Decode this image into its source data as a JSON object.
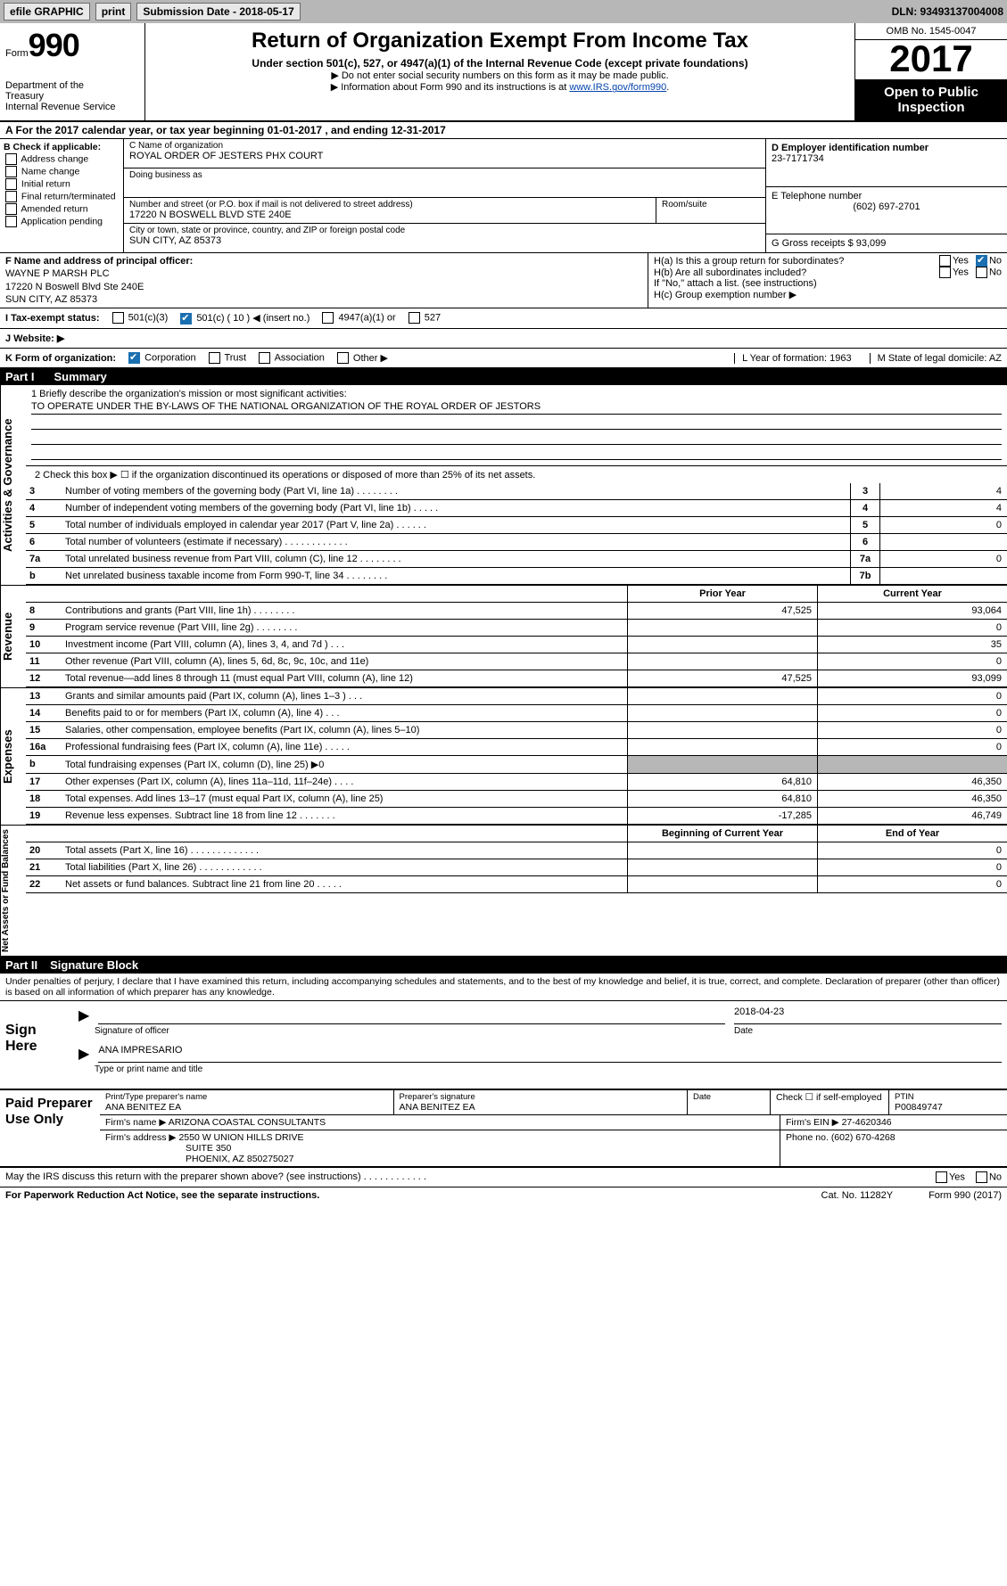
{
  "colors": {
    "topbar_bg": "#b7b7b7",
    "button_bg": "#e8e8e8",
    "link": "#0645ad",
    "check_bg": "#1a6fb0",
    "black": "#000000",
    "white": "#ffffff"
  },
  "topbar": {
    "efile": "efile GRAPHIC",
    "print": "print",
    "subdate_label": "Submission Date - 2018-05-17",
    "dln": "DLN: 93493137004008"
  },
  "header": {
    "form_prefix": "Form",
    "form_number": "990",
    "dept1": "Department of the",
    "dept2": "Treasury",
    "dept3": "Internal Revenue Service",
    "title": "Return of Organization Exempt From Income Tax",
    "sub1": "Under section 501(c), 527, or 4947(a)(1) of the Internal Revenue Code (except private foundations)",
    "sub2": "▶ Do not enter social security numbers on this form as it may be made public.",
    "sub3_pre": "▶ Information about Form 990 and its instructions is at ",
    "sub3_link": "www.IRS.gov/form990",
    "omb": "OMB No. 1545-0047",
    "year": "2017",
    "otp1": "Open to Public",
    "otp2": "Inspection"
  },
  "lineA": "A For the 2017 calendar year, or tax year beginning 01-01-2017   , and ending 12-31-2017",
  "sectionB": {
    "title": "B Check if applicable:",
    "items": [
      "Address change",
      "Name change",
      "Initial return",
      "Final return/terminated",
      "Amended return",
      "Application pending"
    ]
  },
  "sectionC": {
    "name_lbl": "C Name of organization",
    "name": "ROYAL ORDER OF JESTERS PHX COURT",
    "dba_lbl": "Doing business as",
    "dba": "",
    "street_lbl": "Number and street (or P.O. box if mail is not delivered to street address)",
    "street": "17220 N BOSWELL BLVD STE 240E",
    "room_lbl": "Room/suite",
    "room": "",
    "city_lbl": "City or town, state or province, country, and ZIP or foreign postal code",
    "city": "SUN CITY, AZ  85373"
  },
  "sectionD": {
    "lbl": "D Employer identification number",
    "val": "23-7171734"
  },
  "sectionE": {
    "lbl": "E Telephone number",
    "val": "(602) 697-2701"
  },
  "sectionG": {
    "lbl": "G Gross receipts $ 93,099"
  },
  "sectionF": {
    "lbl": "F Name and address of principal officer:",
    "l1": "WAYNE P MARSH PLC",
    "l2": "17220 N Boswell Blvd Ste 240E",
    "l3": "SUN CITY, AZ  85373"
  },
  "sectionH": {
    "ha": "H(a)  Is this a group return for subordinates?",
    "hb": "H(b)  Are all subordinates included?",
    "hb2": "If \"No,\" attach a list. (see instructions)",
    "hc": "H(c)  Group exemption number ▶",
    "yes": "Yes",
    "no": "No"
  },
  "rowI": {
    "lbl": "I   Tax-exempt status:",
    "o1": "501(c)(3)",
    "o2": "501(c) ( 10 ) ◀ (insert no.)",
    "o3": "4947(a)(1) or",
    "o4": "527"
  },
  "rowJ": {
    "lbl": "J   Website: ▶"
  },
  "rowK": {
    "lbl": "K Form of organization:",
    "o1": "Corporation",
    "o2": "Trust",
    "o3": "Association",
    "o4": "Other ▶",
    "l_lbl": "L Year of formation: 1963",
    "m_lbl": "M State of legal domicile: AZ"
  },
  "part1": {
    "num": "Part I",
    "title": "Summary"
  },
  "vtabs": {
    "ag": "Activities & Governance",
    "rev": "Revenue",
    "exp": "Expenses",
    "na": "Net Assets or Fund Balances"
  },
  "summary": {
    "l1_lbl": "1   Briefly describe the organization's mission or most significant activities:",
    "l1_val": "TO OPERATE UNDER THE BY-LAWS OF THE NATIONAL ORGANIZATION OF THE ROYAL ORDER OF JESTORS",
    "l2": "2   Check this box ▶ ☐  if the organization discontinued its operations or disposed of more than 25% of its net assets.",
    "rows": [
      {
        "n": "3",
        "d": "Number of voting members of the governing body (Part VI, line 1a)   .   .   .   .   .   .   .   .",
        "box": "3",
        "v": "4"
      },
      {
        "n": "4",
        "d": "Number of independent voting members of the governing body (Part VI, line 1b)   .   .   .   .   .",
        "box": "4",
        "v": "4"
      },
      {
        "n": "5",
        "d": "Total number of individuals employed in calendar year 2017 (Part V, line 2a)   .   .   .   .   .   .",
        "box": "5",
        "v": "0"
      },
      {
        "n": "6",
        "d": "Total number of volunteers (estimate if necessary)   .   .   .   .   .   .   .   .   .   .   .   .",
        "box": "6",
        "v": ""
      },
      {
        "n": "7a",
        "d": "Total unrelated business revenue from Part VIII, column (C), line 12    .   .   .   .   .   .   .   .",
        "box": "7a",
        "v": "0"
      },
      {
        "n": "b",
        "d": "Net unrelated business taxable income from Form 990-T, line 34     .   .   .   .   .   .   .   .",
        "box": "7b",
        "v": ""
      }
    ]
  },
  "fin": {
    "hdr_prior": "Prior Year",
    "hdr_curr": "Current Year",
    "hdr_begin": "Beginning of Current Year",
    "hdr_end": "End of Year",
    "rev": [
      {
        "n": "8",
        "d": "Contributions and grants (Part VIII, line 1h)    .   .   .   .   .   .   .   .",
        "v1": "47,525",
        "v2": "93,064"
      },
      {
        "n": "9",
        "d": "Program service revenue (Part VIII, line 2g)    .   .   .   .   .   .   .   .",
        "v1": "",
        "v2": "0"
      },
      {
        "n": "10",
        "d": "Investment income (Part VIII, column (A), lines 3, 4, and 7d )    .   .   .",
        "v1": "",
        "v2": "35"
      },
      {
        "n": "11",
        "d": "Other revenue (Part VIII, column (A), lines 5, 6d, 8c, 9c, 10c, and 11e)",
        "v1": "",
        "v2": "0"
      },
      {
        "n": "12",
        "d": "Total revenue—add lines 8 through 11 (must equal Part VIII, column (A), line 12)",
        "v1": "47,525",
        "v2": "93,099"
      }
    ],
    "exp": [
      {
        "n": "13",
        "d": "Grants and similar amounts paid (Part IX, column (A), lines 1–3 )    .   .   .",
        "v1": "",
        "v2": "0"
      },
      {
        "n": "14",
        "d": "Benefits paid to or for members (Part IX, column (A), line 4)    .   .   .",
        "v1": "",
        "v2": "0"
      },
      {
        "n": "15",
        "d": "Salaries, other compensation, employee benefits (Part IX, column (A), lines 5–10)",
        "v1": "",
        "v2": "0"
      },
      {
        "n": "16a",
        "d": "Professional fundraising fees (Part IX, column (A), line 11e)    .   .   .   .   .",
        "v1": "",
        "v2": "0"
      },
      {
        "n": "b",
        "d": "Total fundraising expenses (Part IX, column (D), line 25) ▶0",
        "v1": "—hide—",
        "v2": "—hide—"
      },
      {
        "n": "17",
        "d": "Other expenses (Part IX, column (A), lines 11a–11d, 11f–24e)    .   .   .   .",
        "v1": "64,810",
        "v2": "46,350"
      },
      {
        "n": "18",
        "d": "Total expenses. Add lines 13–17 (must equal Part IX, column (A), line 25)",
        "v1": "64,810",
        "v2": "46,350"
      },
      {
        "n": "19",
        "d": "Revenue less expenses. Subtract line 18 from line 12    .   .   .   .   .   .   .",
        "v1": "-17,285",
        "v2": "46,749"
      }
    ],
    "na": [
      {
        "n": "20",
        "d": "Total assets (Part X, line 16)  .   .   .   .   .   .   .   .   .   .   .   .   .",
        "v1": "",
        "v2": "0"
      },
      {
        "n": "21",
        "d": "Total liabilities (Part X, line 26)   .   .   .   .   .   .   .   .   .   .   .   .",
        "v1": "",
        "v2": "0"
      },
      {
        "n": "22",
        "d": "Net assets or fund balances. Subtract line 21 from line 20    .   .   .   .   .",
        "v1": "",
        "v2": "0"
      }
    ]
  },
  "part2": {
    "num": "Part II",
    "title": "Signature Block"
  },
  "perjury": "Under penalties of perjury, I declare that I have examined this return, including accompanying schedules and statements, and to the best of my knowledge and belief, it is true, correct, and complete. Declaration of preparer (other than officer) is based on all information of which preparer has any knowledge.",
  "sign": {
    "here": "Sign Here",
    "sig_lbl": "Signature of officer",
    "date_lbl": "Date",
    "date_val": "2018-04-23",
    "name": "ANA IMPRESARIO",
    "name_lbl": "Type or print name and title"
  },
  "prep": {
    "title": "Paid Preparer Use Only",
    "r1": {
      "name_lbl": "Print/Type preparer's name",
      "name": "ANA BENITEZ EA",
      "sig_lbl": "Preparer's signature",
      "sig": "ANA BENITEZ EA",
      "date_lbl": "Date",
      "date": "",
      "self_lbl": "Check ☐ if self-employed",
      "ptin_lbl": "PTIN",
      "ptin": "P00849747"
    },
    "r2": {
      "firm_lbl": "Firm's name    ▶",
      "firm": "ARIZONA COASTAL CONSULTANTS",
      "ein_lbl": "Firm's EIN ▶",
      "ein": "27-4620346"
    },
    "r3": {
      "addr_lbl": "Firm's address ▶",
      "addr1": "2550 W UNION HILLS DRIVE",
      "addr2": "SUITE 350",
      "addr3": "PHOENIX, AZ  850275027",
      "phone_lbl": "Phone no.",
      "phone": "(602) 670-4268"
    }
  },
  "discuss": {
    "q": "May the IRS discuss this return with the preparer shown above? (see instructions)    .   .   .   .   .   .   .   .   .   .   .   .",
    "yes": "Yes",
    "no": "No"
  },
  "footer": {
    "l": "For Paperwork Reduction Act Notice, see the separate instructions.",
    "c": "Cat. No. 11282Y",
    "r": "Form 990 (2017)"
  }
}
